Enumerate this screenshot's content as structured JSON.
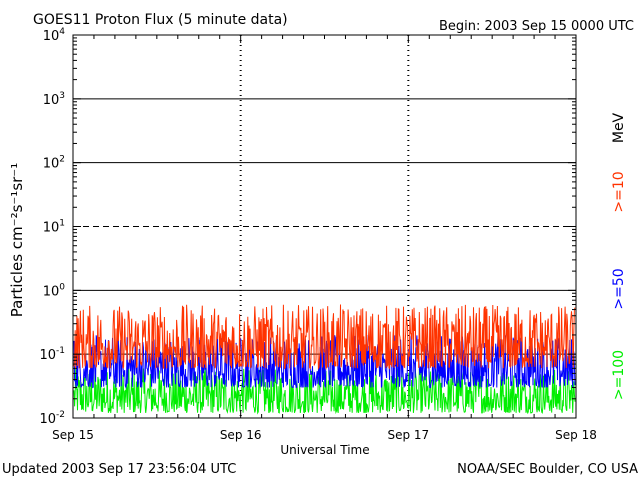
{
  "header": {
    "title": "GOES11 Proton Flux (5 minute data)",
    "begin": "Begin: 2003 Sep 15 0000 UTC"
  },
  "footer": {
    "updated": "Updated 2003 Sep 17 23:56:04 UTC",
    "credit": "NOAA/SEC Boulder, CO USA"
  },
  "chart_data": {
    "type": "line",
    "title": "GOES11 Proton Flux (5 minute data)",
    "xlabel": "Universal Time",
    "ylabel": "Particles cm⁻²s⁻¹sr⁻¹",
    "yscale": "log",
    "ylim": [
      0.01,
      10000
    ],
    "xlim": [
      "2003-09-15",
      "2003-09-18"
    ],
    "x_ticks": [
      "Sep 15",
      "Sep 16",
      "Sep 17",
      "Sep 18"
    ],
    "y_ticks": [
      {
        "base": "10",
        "exp": "-2"
      },
      {
        "base": "10",
        "exp": "-1"
      },
      {
        "base": "10",
        "exp": "0"
      },
      {
        "base": "10",
        "exp": "1"
      },
      {
        "base": "10",
        "exp": "2"
      },
      {
        "base": "10",
        "exp": "3"
      },
      {
        "base": "10",
        "exp": "4"
      }
    ],
    "threshold_line": 10,
    "grid": true,
    "legend_position": "right",
    "legend_unit": "MeV",
    "series": [
      {
        "name": ">=10",
        "color": "#ff3300",
        "typical_range": [
          0.06,
          0.6
        ]
      },
      {
        "name": ">=50",
        "color": "#0000ff",
        "typical_range": [
          0.03,
          0.2
        ]
      },
      {
        "name": ">=100",
        "color": "#00ee00",
        "typical_range": [
          0.012,
          0.06
        ]
      }
    ]
  }
}
